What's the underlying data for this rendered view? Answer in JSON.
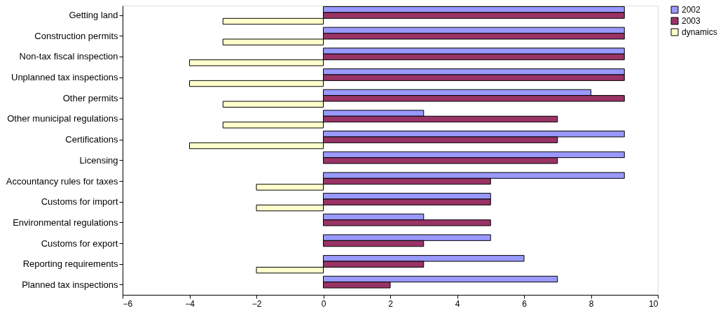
{
  "chart_data": {
    "type": "bar",
    "orientation": "horizontal",
    "categories": [
      "Getting land",
      "Construction permits",
      "Non-tax fiscal inspection",
      "Unplanned tax inspections",
      "Other permits",
      "Other municipal regulations",
      "Certifications",
      "Licensing",
      "Accountancy rules for taxes",
      "Customs for import",
      "Environmental regulations",
      "Customs for export",
      "Reporting requirements",
      "Planned tax inspections"
    ],
    "series": [
      {
        "name": "2002",
        "color": "#9999ff",
        "values": [
          9,
          9,
          9,
          9,
          8,
          3,
          9,
          9,
          9,
          5,
          3,
          5,
          6,
          7
        ]
      },
      {
        "name": "2003",
        "color": "#993366",
        "values": [
          9,
          9,
          9,
          9,
          9,
          7,
          7,
          7,
          5,
          5,
          5,
          3,
          3,
          2
        ]
      },
      {
        "name": "dynamics",
        "color": "#ffffcc",
        "values": [
          -3,
          -3,
          -4,
          -4,
          -3,
          -3,
          -4,
          null,
          -2,
          -2,
          null,
          null,
          -2,
          null
        ]
      }
    ],
    "xlim": [
      -6,
      10
    ],
    "xticks": [
      -6,
      -4,
      -2,
      0,
      2,
      4,
      6,
      8,
      10
    ],
    "grid": false,
    "legend": "right"
  }
}
